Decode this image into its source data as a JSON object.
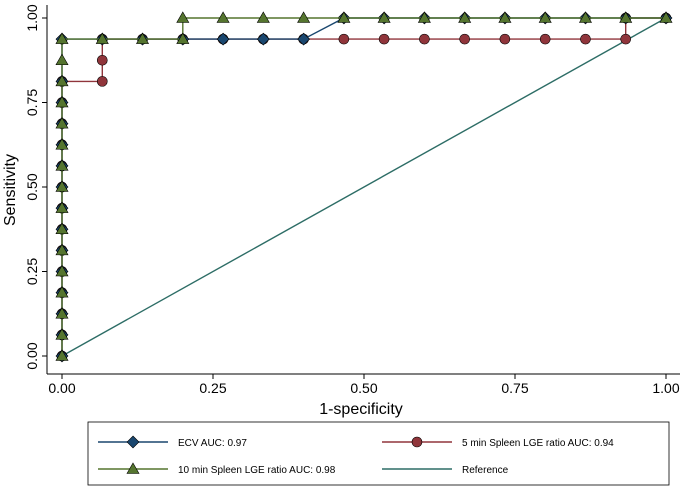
{
  "chart_data": {
    "type": "line",
    "xlabel": "1-specificity",
    "ylabel": "Sensitivity",
    "xlim": [
      0,
      1
    ],
    "ylim": [
      0,
      1
    ],
    "x_ticks": [
      0,
      0.25,
      0.5,
      0.75,
      1
    ],
    "x_tick_labels": [
      "0.00",
      "0.25",
      "0.50",
      "0.75",
      "1.00"
    ],
    "y_ticks": [
      0,
      0.25,
      0.5,
      0.75,
      1
    ],
    "y_tick_labels": [
      "0.00",
      "0.25",
      "0.50",
      "0.75",
      "1.00"
    ],
    "grid": false,
    "legend_position": "bottom",
    "series": [
      {
        "name": "ECV AUC: 0.97",
        "color": "#1a476f",
        "marker": "diamond",
        "points": [
          [
            0,
            0
          ],
          [
            0,
            0.0625
          ],
          [
            0,
            0.125
          ],
          [
            0,
            0.1875
          ],
          [
            0,
            0.25
          ],
          [
            0,
            0.3125
          ],
          [
            0,
            0.375
          ],
          [
            0,
            0.4375
          ],
          [
            0,
            0.5
          ],
          [
            0,
            0.5625
          ],
          [
            0,
            0.625
          ],
          [
            0,
            0.6875
          ],
          [
            0,
            0.75
          ],
          [
            0,
            0.8125
          ],
          [
            0,
            0.9375
          ],
          [
            0.0667,
            0.9375
          ],
          [
            0.1333,
            0.9375
          ],
          [
            0.2,
            0.9375
          ],
          [
            0.2667,
            0.9375
          ],
          [
            0.3333,
            0.9375
          ],
          [
            0.4,
            0.9375
          ],
          [
            0.4667,
            1
          ],
          [
            0.5333,
            1
          ],
          [
            0.6,
            1
          ],
          [
            0.6667,
            1
          ],
          [
            0.7333,
            1
          ],
          [
            0.8,
            1
          ],
          [
            0.8667,
            1
          ],
          [
            0.9333,
            1
          ],
          [
            1,
            1
          ]
        ]
      },
      {
        "name": "5 min Spleen LGE ratio AUC: 0.94",
        "color": "#90353b",
        "marker": "circle",
        "points": [
          [
            0,
            0
          ],
          [
            0,
            0.0625
          ],
          [
            0,
            0.125
          ],
          [
            0,
            0.1875
          ],
          [
            0,
            0.25
          ],
          [
            0,
            0.3125
          ],
          [
            0,
            0.375
          ],
          [
            0,
            0.4375
          ],
          [
            0,
            0.5
          ],
          [
            0,
            0.5625
          ],
          [
            0,
            0.625
          ],
          [
            0,
            0.6875
          ],
          [
            0,
            0.75
          ],
          [
            0,
            0.8125
          ],
          [
            0.0667,
            0.8125
          ],
          [
            0.0667,
            0.875
          ],
          [
            0.0667,
            0.9375
          ],
          [
            0.1333,
            0.9375
          ],
          [
            0.2,
            0.9375
          ],
          [
            0.2667,
            0.9375
          ],
          [
            0.3333,
            0.9375
          ],
          [
            0.4,
            0.9375
          ],
          [
            0.4667,
            0.9375
          ],
          [
            0.5333,
            0.9375
          ],
          [
            0.6,
            0.9375
          ],
          [
            0.6667,
            0.9375
          ],
          [
            0.7333,
            0.9375
          ],
          [
            0.8,
            0.9375
          ],
          [
            0.8667,
            0.9375
          ],
          [
            0.9333,
            0.9375
          ],
          [
            0.9333,
            1
          ],
          [
            1,
            1
          ]
        ]
      },
      {
        "name": "10 min Spleen LGE ratio AUC: 0.98",
        "color": "#55752f",
        "marker": "triangle",
        "points": [
          [
            0,
            0
          ],
          [
            0,
            0.0625
          ],
          [
            0,
            0.125
          ],
          [
            0,
            0.1875
          ],
          [
            0,
            0.25
          ],
          [
            0,
            0.3125
          ],
          [
            0,
            0.375
          ],
          [
            0,
            0.4375
          ],
          [
            0,
            0.5
          ],
          [
            0,
            0.5625
          ],
          [
            0,
            0.625
          ],
          [
            0,
            0.6875
          ],
          [
            0,
            0.75
          ],
          [
            0,
            0.8125
          ],
          [
            0,
            0.875
          ],
          [
            0,
            0.9375
          ],
          [
            0.0667,
            0.9375
          ],
          [
            0.1333,
            0.9375
          ],
          [
            0.2,
            0.9375
          ],
          [
            0.2,
            1
          ],
          [
            0.2667,
            1
          ],
          [
            0.3333,
            1
          ],
          [
            0.4,
            1
          ],
          [
            0.4667,
            1
          ],
          [
            0.5333,
            1
          ],
          [
            0.6,
            1
          ],
          [
            0.6667,
            1
          ],
          [
            0.7333,
            1
          ],
          [
            0.8,
            1
          ],
          [
            0.8667,
            1
          ],
          [
            0.9333,
            1
          ],
          [
            1,
            1
          ]
        ]
      },
      {
        "name": "Reference",
        "color": "#2d6d66",
        "marker": "none",
        "points": [
          [
            0,
            0
          ],
          [
            1,
            1
          ]
        ]
      }
    ]
  }
}
